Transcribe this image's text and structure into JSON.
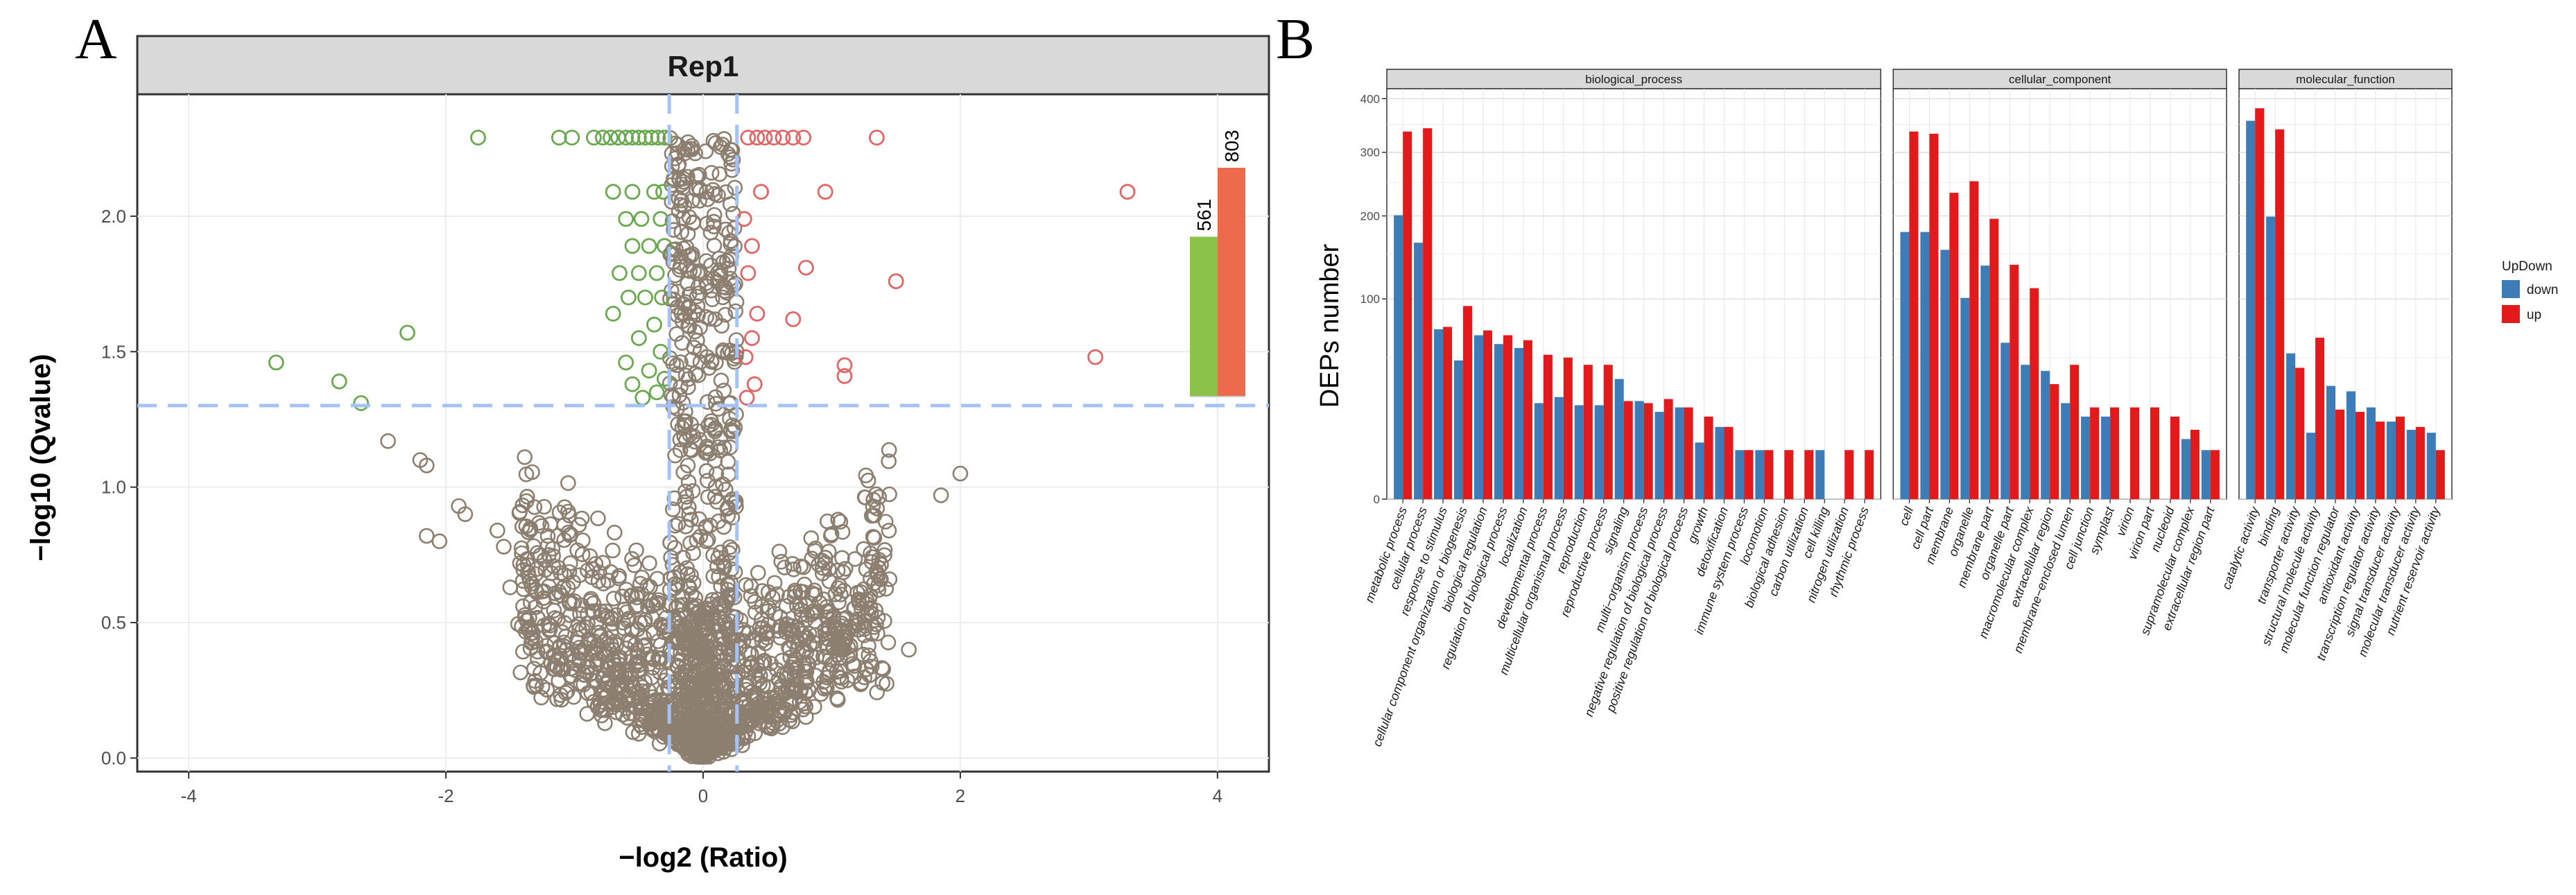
{
  "panel_a_label": "A",
  "panel_b_label": "B",
  "chart_data": [
    {
      "type": "scatter",
      "title": "Rep1",
      "xlabel": "−log2 (Ratio)",
      "ylabel": "−log10 (Qvalue)",
      "xlim": [
        -4.4,
        4.4
      ],
      "ylim": [
        -0.05,
        2.45
      ],
      "x_ticks": [
        "-4",
        "-2",
        "0",
        "2",
        "4"
      ],
      "y_ticks": [
        "0.0",
        "0.5",
        "1.0",
        "1.5",
        "2.0"
      ],
      "x_tick_values": [
        -4,
        -2,
        0,
        2,
        4
      ],
      "y_tick_values": [
        0,
        0.5,
        1.0,
        1.5,
        2.0
      ],
      "thresholds": {
        "x": [
          -0.263,
          0.263
        ],
        "y": 1.301
      },
      "colors": {
        "down": "#6aa84f",
        "up": "#e06666",
        "ns": "#8c7f70",
        "threshold_line": "#a4c2f4"
      },
      "inset_bars": {
        "labels": [
          "561",
          "803"
        ],
        "values": [
          561,
          803
        ],
        "colors": [
          "#8bc34a",
          "#ec6b4d"
        ]
      },
      "highlight_points": {
        "down": [
          [
            -1.75,
            2.29
          ],
          [
            -1.12,
            2.29
          ],
          [
            -1.02,
            2.29
          ],
          [
            -0.85,
            2.29
          ],
          [
            -0.78,
            2.29
          ],
          [
            -0.72,
            2.29
          ],
          [
            -0.66,
            2.29
          ],
          [
            -0.6,
            2.29
          ],
          [
            -0.55,
            2.29
          ],
          [
            -0.5,
            2.29
          ],
          [
            -0.45,
            2.29
          ],
          [
            -0.4,
            2.29
          ],
          [
            -0.35,
            2.29
          ],
          [
            -0.3,
            2.29
          ],
          [
            -0.7,
            2.09
          ],
          [
            -0.55,
            2.09
          ],
          [
            -0.38,
            2.09
          ],
          [
            -0.31,
            2.09
          ],
          [
            -0.6,
            1.99
          ],
          [
            -0.48,
            1.99
          ],
          [
            -0.33,
            1.99
          ],
          [
            -0.55,
            1.89
          ],
          [
            -0.42,
            1.89
          ],
          [
            -0.3,
            1.89
          ],
          [
            -0.65,
            1.79
          ],
          [
            -0.5,
            1.79
          ],
          [
            -0.36,
            1.79
          ],
          [
            -0.58,
            1.7
          ],
          [
            -0.45,
            1.7
          ],
          [
            -0.32,
            1.7
          ],
          [
            -0.7,
            1.64
          ],
          [
            -0.38,
            1.6
          ],
          [
            -0.5,
            1.55
          ],
          [
            -0.33,
            1.5
          ],
          [
            -0.6,
            1.46
          ],
          [
            -0.42,
            1.43
          ],
          [
            -0.3,
            1.4
          ],
          [
            -0.55,
            1.38
          ],
          [
            -0.36,
            1.35
          ],
          [
            -2.3,
            1.57
          ],
          [
            -3.32,
            1.46
          ],
          [
            -2.83,
            1.39
          ],
          [
            -2.66,
            1.31
          ],
          [
            -0.47,
            1.33
          ]
        ],
        "up": [
          [
            0.35,
            2.29
          ],
          [
            0.42,
            2.29
          ],
          [
            0.48,
            2.29
          ],
          [
            0.55,
            2.29
          ],
          [
            0.62,
            2.29
          ],
          [
            0.7,
            2.29
          ],
          [
            0.78,
            2.29
          ],
          [
            1.35,
            2.29
          ],
          [
            0.45,
            2.09
          ],
          [
            0.95,
            2.09
          ],
          [
            3.3,
            2.09
          ],
          [
            0.32,
            1.99
          ],
          [
            0.38,
            1.89
          ],
          [
            0.8,
            1.81
          ],
          [
            0.35,
            1.79
          ],
          [
            1.5,
            1.76
          ],
          [
            0.42,
            1.64
          ],
          [
            0.7,
            1.62
          ],
          [
            0.38,
            1.55
          ],
          [
            0.33,
            1.48
          ],
          [
            1.1,
            1.45
          ],
          [
            1.1,
            1.41
          ],
          [
            3.05,
            1.48
          ],
          [
            0.4,
            1.38
          ],
          [
            0.34,
            1.33
          ]
        ]
      }
    },
    {
      "type": "bar",
      "ylabel": "DEPs number",
      "legend_title": "UpDown",
      "legend_labels": [
        "down",
        "up"
      ],
      "colors": {
        "down": "#3e7cb8",
        "up": "#e31a1c"
      },
      "y_scale": "sqrt",
      "ylim": [
        0,
        420
      ],
      "y_ticks": [
        "0",
        "100",
        "200",
        "300",
        "400"
      ],
      "y_tick_values": [
        0,
        100,
        200,
        300,
        400
      ],
      "facets": [
        {
          "name": "biological_process",
          "categories": [
            "metabolic process",
            "cellular process",
            "response to stimulus",
            "cellular component organization or biogenesis",
            "biological regulation",
            "regulation of biological process",
            "localization",
            "developmental process",
            "multicellular organismal process",
            "reproduction",
            "reproductive process",
            "signaling",
            "multi−organism process",
            "negative regulation of biological process",
            "positive regulation of biological process",
            "growth",
            "detoxification",
            "immune system process",
            "locomotion",
            "biological adhesion",
            "carbon utilization",
            "cell killing",
            "nitrogen utilization",
            "rhythmic process"
          ],
          "series": [
            {
              "name": "down",
              "values": [
                201,
                164,
                72,
                48,
                67,
                60,
                57,
                23,
                26,
                22,
                22,
                36,
                24,
                19,
                21,
                8,
                13,
                6,
                6,
                0,
                0,
                6,
                0,
                0
              ]
            },
            {
              "name": "up",
              "values": [
                337,
                343,
                74,
                93,
                71,
                67,
                63,
                52,
                50,
                45,
                45,
                24,
                23,
                25,
                21,
                17,
                13,
                6,
                6,
                6,
                6,
                0,
                6,
                6
              ]
            }
          ]
        },
        {
          "name": "cellular_component",
          "categories": [
            "cell",
            "cell part",
            "membrane",
            "organelle",
            "membrane part",
            "organelle part",
            "macromolecular complex",
            "extracellular region",
            "membrane−enclosed lumen",
            "cell junction",
            "symplast",
            "virion",
            "virion part",
            "nucleoid",
            "supramolecular complex",
            "extracellular region part"
          ],
          "series": [
            {
              "name": "down",
              "values": [
                178,
                178,
                155,
                101,
                136,
                61,
                45,
                41,
                23,
                17,
                17,
                0,
                0,
                0,
                9,
                6
              ]
            },
            {
              "name": "up",
              "values": [
                337,
                333,
                234,
                252,
                196,
                137,
                111,
                33,
                45,
                21,
                21,
                21,
                21,
                17,
                12,
                6
              ]
            }
          ]
        },
        {
          "name": "molecular_function",
          "categories": [
            "catalytic activity",
            "binding",
            "transporter activity",
            "structural molecule activity",
            "molecular function regulator",
            "antioxidant activity",
            "transcription regulator activity",
            "signal transducer activity",
            "molecular transducer activity",
            "nutrient reservoir activity"
          ],
          "series": [
            {
              "name": "down",
              "values": [
                357,
                199,
                53,
                11,
                32,
                29,
                21,
                15,
                12,
                11
              ]
            },
            {
              "name": "up",
              "values": [
                381,
                341,
                43,
                65,
                20,
                19,
                15,
                17,
                13,
                6
              ]
            }
          ]
        }
      ]
    }
  ]
}
